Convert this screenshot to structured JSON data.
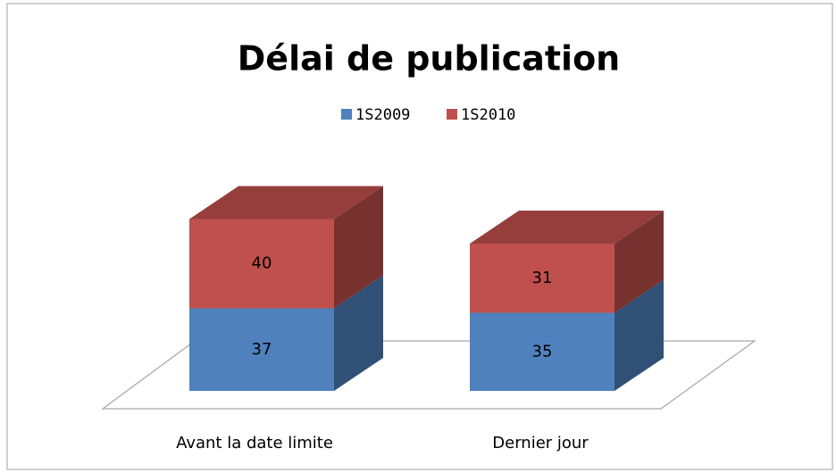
{
  "chart_data": {
    "type": "bar3d_stacked",
    "title": "Délai de publication",
    "categories": [
      "Avant la date limite",
      "Dernier jour"
    ],
    "series": [
      {
        "name": "1S2009",
        "color": "#4f81bd",
        "values": [
          37,
          35
        ]
      },
      {
        "name": "1S2010",
        "color": "#c0504d",
        "values": [
          40,
          31
        ]
      }
    ],
    "legend": "top"
  }
}
